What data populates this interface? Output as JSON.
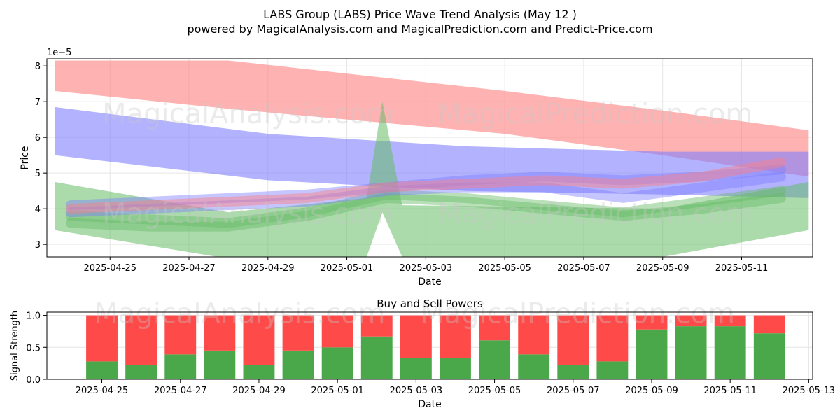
{
  "figure": {
    "title": "LABS Group (LABS) Price Wave Trend Analysis (May 12 )",
    "subtitle": "powered by MagicalAnalysis.com and MagicalPrediction.com and Predict-Price.com",
    "watermarks": [
      "MagicalAnalysis.com",
      "MagicalPrediction.com"
    ]
  },
  "colors": {
    "red_band": "#ff7f7f",
    "blue_band": "#7f7fff",
    "green_band": "#66bb66",
    "buy": "#4aa84a",
    "sell": "#ff4a4a",
    "grid": "#e6e6e6"
  },
  "chart_data": [
    {
      "type": "area",
      "title": "",
      "xlabel": "Date",
      "ylabel": "Price",
      "y_scale_label": "1e−5",
      "y_unit_note": "values in units of 1e-5",
      "xlim": [
        "2025-04-23.4",
        "2025-05-12.8"
      ],
      "ylim": [
        2.65,
        8.2
      ],
      "x_ticks": [
        "2025-04-25",
        "2025-04-27",
        "2025-04-29",
        "2025-05-01",
        "2025-05-03",
        "2025-05-05",
        "2025-05-07",
        "2025-05-09",
        "2025-05-11"
      ],
      "y_ticks": [
        3,
        4,
        5,
        6,
        7,
        8
      ],
      "grid": true,
      "bands": [
        {
          "color": "red",
          "points": [
            [
              "2025-04-23.6",
              7.3,
              8.15
            ],
            [
              "2025-04-28.0",
              6.8,
              8.15
            ],
            [
              "2025-05-05.0",
              6.1,
              7.3
            ],
            [
              "2025-05-09.0",
              5.5,
              6.75
            ],
            [
              "2025-05-12.7",
              4.9,
              6.2
            ]
          ]
        },
        {
          "color": "blue",
          "points": [
            [
              "2025-04-23.6",
              5.5,
              6.85
            ],
            [
              "2025-04-29.0",
              4.8,
              6.1
            ],
            [
              "2025-05-04.0",
              4.5,
              5.75
            ],
            [
              "2025-05-09.0",
              4.4,
              5.6
            ],
            [
              "2025-05-12.7",
              4.3,
              5.6
            ]
          ]
        },
        {
          "color": "green",
          "points": [
            [
              "2025-04-23.6",
              3.4,
              4.75
            ],
            [
              "2025-04-28.0",
              2.6,
              3.9
            ],
            [
              "2025-05-01.5",
              2.65,
              4.3
            ],
            [
              "2025-05-01.9",
              3.9,
              7.0
            ],
            [
              "2025-05-02.4",
              2.65,
              4.1
            ],
            [
              "2025-05-09.0",
              2.65,
              4.0
            ],
            [
              "2025-05-12.7",
              3.4,
              4.75
            ]
          ]
        }
      ],
      "wave_lines": [
        {
          "color": "green",
          "points": [
            [
              "2025-04-24.0",
              3.8
            ],
            [
              "2025-04-26.0",
              3.7
            ],
            [
              "2025-04-28.0",
              3.6
            ],
            [
              "2025-04-30.0",
              3.9
            ],
            [
              "2025-05-02.0",
              4.4
            ],
            [
              "2025-05-04.0",
              4.3
            ],
            [
              "2025-05-06.0",
              4.1
            ],
            [
              "2025-05-08.0",
              3.9
            ],
            [
              "2025-05-10.0",
              4.2
            ],
            [
              "2025-05-12.0",
              4.5
            ]
          ]
        },
        {
          "color": "green",
          "points": [
            [
              "2025-04-24.0",
              3.6
            ],
            [
              "2025-04-26.0",
              3.5
            ],
            [
              "2025-04-28.0",
              3.5
            ],
            [
              "2025-04-30.0",
              3.8
            ],
            [
              "2025-05-02.0",
              4.3
            ],
            [
              "2025-05-04.0",
              4.2
            ],
            [
              "2025-05-06.0",
              4.0
            ],
            [
              "2025-05-08.0",
              3.8
            ],
            [
              "2025-05-10.0",
              4.0
            ],
            [
              "2025-05-12.0",
              4.3
            ]
          ]
        },
        {
          "color": "blue",
          "points": [
            [
              "2025-04-24.0",
              4.1
            ],
            [
              "2025-04-26.0",
              4.2
            ],
            [
              "2025-04-28.0",
              4.3
            ],
            [
              "2025-04-30.0",
              4.4
            ],
            [
              "2025-05-02.0",
              4.6
            ],
            [
              "2025-05-04.0",
              4.8
            ],
            [
              "2025-05-06.0",
              4.9
            ],
            [
              "2025-05-08.0",
              4.8
            ],
            [
              "2025-05-10.0",
              4.9
            ],
            [
              "2025-05-12.0",
              5.1
            ]
          ]
        },
        {
          "color": "blue",
          "points": [
            [
              "2025-04-24.0",
              3.9
            ],
            [
              "2025-04-26.0",
              4.0
            ],
            [
              "2025-04-28.0",
              4.1
            ],
            [
              "2025-04-30.0",
              4.2
            ],
            [
              "2025-05-02.0",
              4.5
            ],
            [
              "2025-05-04.0",
              4.6
            ],
            [
              "2025-05-06.0",
              4.6
            ],
            [
              "2025-05-08.0",
              4.3
            ],
            [
              "2025-05-10.0",
              4.6
            ],
            [
              "2025-05-12.0",
              4.9
            ]
          ]
        },
        {
          "color": "red",
          "points": [
            [
              "2025-04-24.0",
              4.0
            ],
            [
              "2025-04-26.0",
              4.1
            ],
            [
              "2025-04-28.0",
              4.2
            ],
            [
              "2025-04-30.0",
              4.3
            ],
            [
              "2025-05-02.0",
              4.6
            ],
            [
              "2025-05-04.0",
              4.7
            ],
            [
              "2025-05-06.0",
              4.8
            ],
            [
              "2025-05-08.0",
              4.7
            ],
            [
              "2025-05-10.0",
              4.9
            ],
            [
              "2025-05-12.0",
              5.3
            ]
          ]
        }
      ]
    },
    {
      "type": "bar",
      "title": "Buy and Sell Powers",
      "xlabel": "Date",
      "ylabel": "Signal Strength",
      "xlim": [
        "2025-04-23.6",
        "2025-05-13.1"
      ],
      "ylim": [
        0,
        1.05
      ],
      "x_ticks": [
        "2025-04-25",
        "2025-04-27",
        "2025-04-29",
        "2025-05-01",
        "2025-05-03",
        "2025-05-05",
        "2025-05-07",
        "2025-05-09",
        "2025-05-11",
        "2025-05-13"
      ],
      "y_ticks": [
        0.0,
        0.5,
        1.0
      ],
      "grid": true,
      "categories": [
        "2025-04-25",
        "2025-04-26",
        "2025-04-27",
        "2025-04-28",
        "2025-04-29",
        "2025-04-30",
        "2025-05-01",
        "2025-05-02",
        "2025-05-03",
        "2025-05-04",
        "2025-05-05",
        "2025-05-06",
        "2025-05-07",
        "2025-05-08",
        "2025-05-09",
        "2025-05-10",
        "2025-05-11",
        "2025-05-12"
      ],
      "series": [
        {
          "color": "green",
          "values": [
            0.28,
            0.22,
            0.39,
            0.45,
            0.22,
            0.45,
            0.5,
            0.67,
            0.33,
            0.33,
            0.61,
            0.39,
            0.22,
            0.28,
            0.78,
            0.83,
            0.83,
            0.72
          ]
        },
        {
          "color": "red",
          "values": [
            0.72,
            0.78,
            0.61,
            0.55,
            0.78,
            0.55,
            0.5,
            0.33,
            0.67,
            0.67,
            0.39,
            0.61,
            0.78,
            0.72,
            0.22,
            0.17,
            0.17,
            0.28
          ]
        }
      ]
    }
  ]
}
